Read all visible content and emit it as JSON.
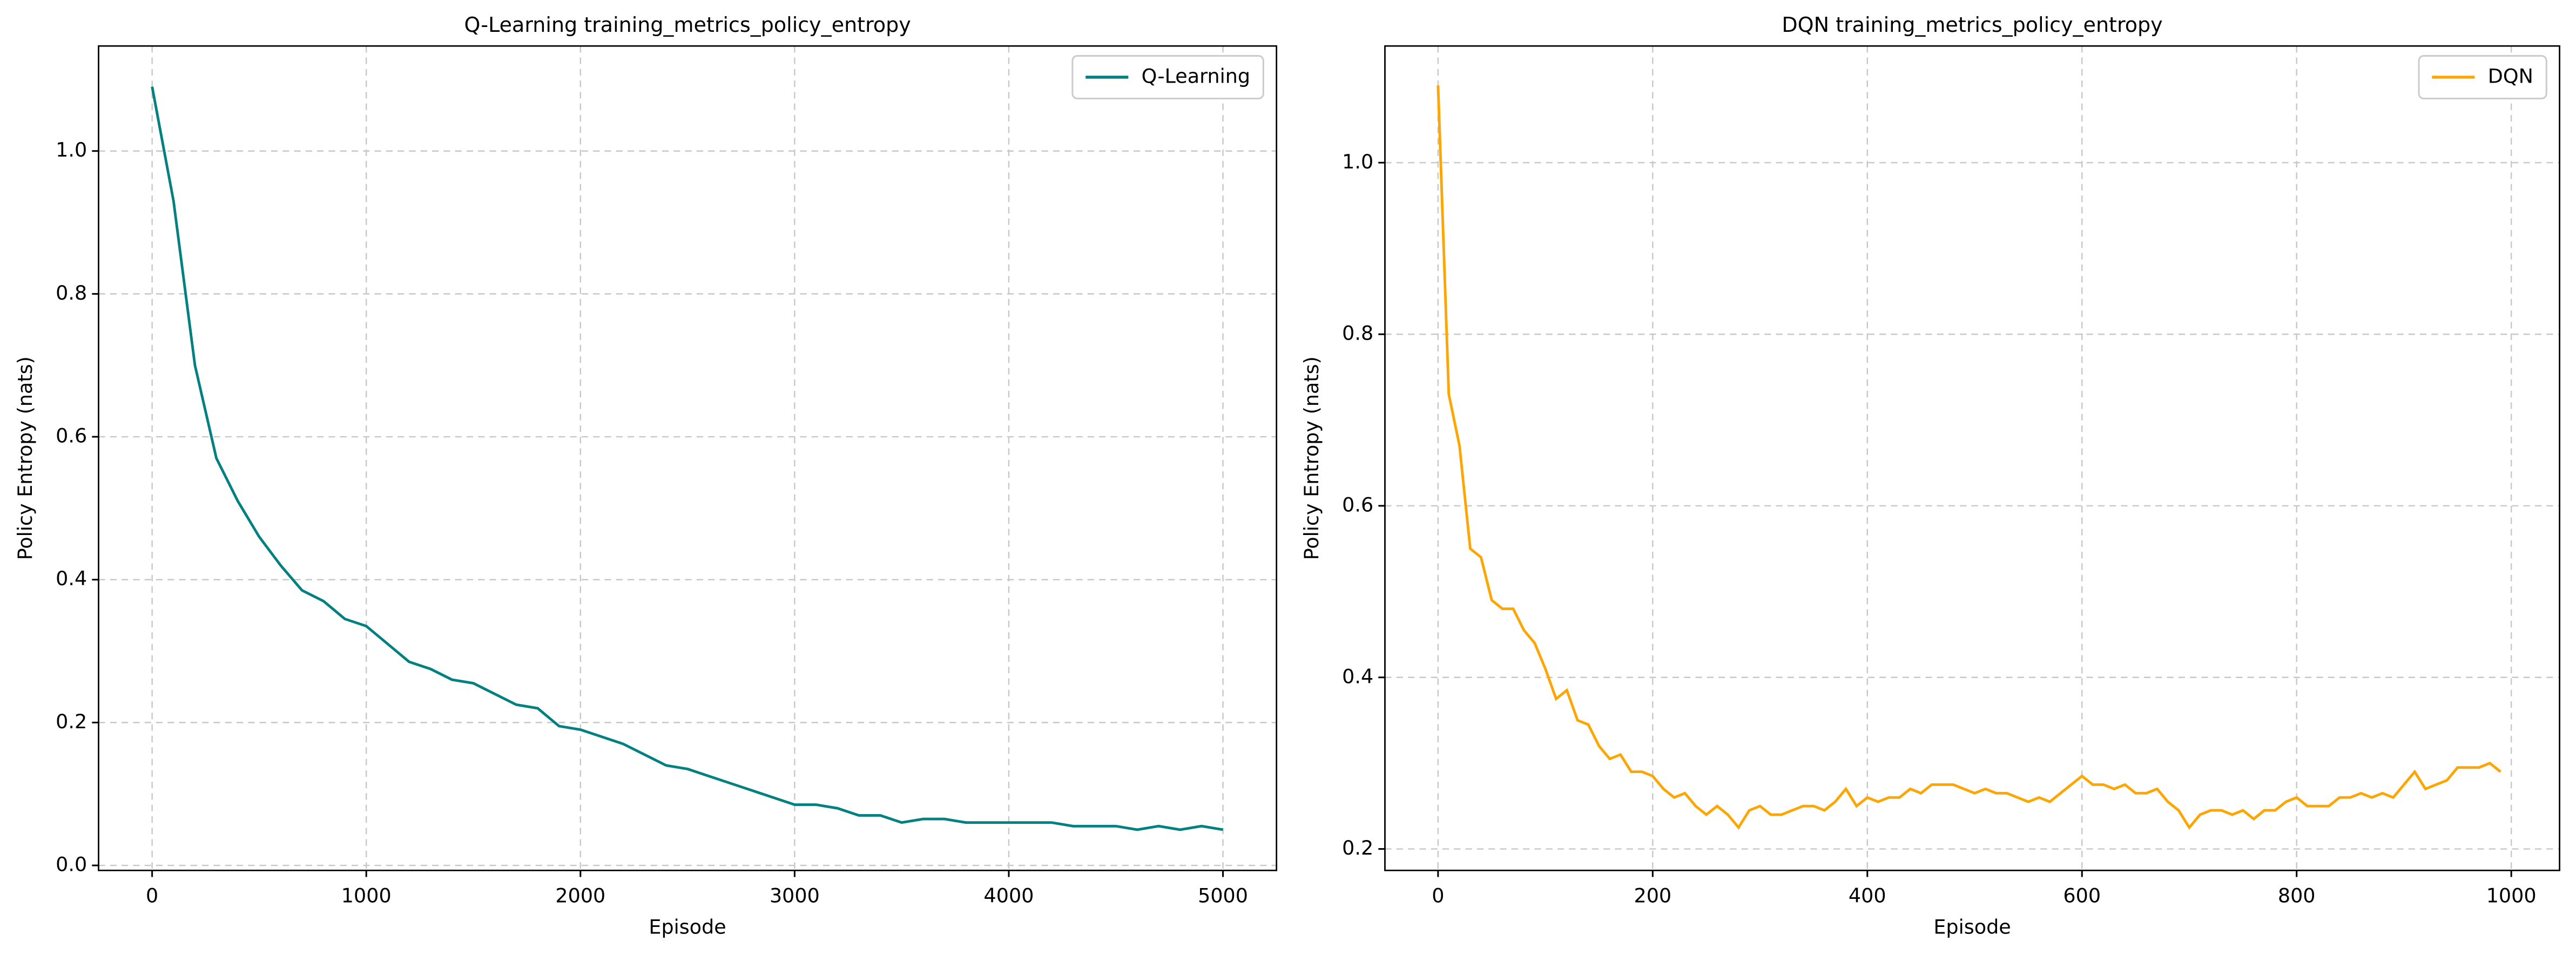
{
  "chart_data": [
    {
      "type": "line",
      "title": "Q-Learning training_metrics_policy_entropy",
      "xlabel": "Episode",
      "ylabel": "Policy Entropy (nats)",
      "x": [
        0,
        100,
        200,
        300,
        400,
        500,
        600,
        700,
        800,
        900,
        1000,
        1100,
        1200,
        1300,
        1400,
        1500,
        1600,
        1700,
        1800,
        1900,
        2000,
        2100,
        2200,
        2300,
        2400,
        2500,
        2600,
        2700,
        2800,
        2900,
        3000,
        3100,
        3200,
        3300,
        3400,
        3500,
        3600,
        3700,
        3800,
        3900,
        4000,
        4100,
        4200,
        4300,
        4400,
        4500,
        4600,
        4700,
        4800,
        4900,
        5000
      ],
      "series": [
        {
          "name": "Q-Learning",
          "color": "#008080",
          "values": [
            1.09,
            0.93,
            0.7,
            0.57,
            0.51,
            0.46,
            0.42,
            0.385,
            0.37,
            0.345,
            0.335,
            0.31,
            0.285,
            0.275,
            0.26,
            0.255,
            0.24,
            0.225,
            0.22,
            0.195,
            0.19,
            0.18,
            0.17,
            0.155,
            0.14,
            0.135,
            0.125,
            0.115,
            0.105,
            0.095,
            0.085,
            0.085,
            0.08,
            0.07,
            0.07,
            0.06,
            0.065,
            0.065,
            0.06,
            0.06,
            0.06,
            0.06,
            0.06,
            0.055,
            0.055,
            0.055,
            0.05,
            0.055,
            0.05,
            0.055,
            0.05
          ]
        }
      ],
      "xlim": [
        -250,
        5250
      ],
      "ylim": [
        -0.007,
        1.147
      ],
      "xticks": [
        0,
        1000,
        2000,
        3000,
        4000,
        5000
      ],
      "yticks": [
        {
          "value": 0,
          "label": "0.0"
        },
        0.2,
        0.4,
        0.6,
        0.8,
        {
          "value": 1,
          "label": "1.0"
        }
      ],
      "grid": true,
      "legend": "upper right"
    },
    {
      "type": "line",
      "title": "DQN training_metrics_policy_entropy",
      "xlabel": "Episode",
      "ylabel": "Policy Entropy (nats)",
      "x": [
        0,
        10,
        20,
        30,
        40,
        50,
        60,
        70,
        80,
        90,
        100,
        110,
        120,
        130,
        140,
        150,
        160,
        170,
        180,
        190,
        200,
        210,
        220,
        230,
        240,
        250,
        260,
        270,
        280,
        290,
        300,
        310,
        320,
        330,
        340,
        350,
        360,
        370,
        380,
        390,
        400,
        410,
        420,
        430,
        440,
        450,
        460,
        470,
        480,
        490,
        500,
        510,
        520,
        530,
        540,
        550,
        560,
        570,
        580,
        590,
        600,
        610,
        620,
        630,
        640,
        650,
        660,
        670,
        680,
        690,
        700,
        710,
        720,
        730,
        740,
        750,
        760,
        770,
        780,
        790,
        800,
        810,
        820,
        830,
        840,
        850,
        860,
        870,
        880,
        890,
        900,
        910,
        920,
        930,
        940,
        950,
        960,
        970,
        980,
        990
      ],
      "series": [
        {
          "name": "DQN",
          "color": "#ffa500",
          "values": [
            1.09,
            0.73,
            0.67,
            0.55,
            0.54,
            0.49,
            0.48,
            0.48,
            0.455,
            0.44,
            0.41,
            0.375,
            0.385,
            0.35,
            0.345,
            0.32,
            0.305,
            0.31,
            0.29,
            0.29,
            0.285,
            0.27,
            0.26,
            0.265,
            0.25,
            0.24,
            0.25,
            0.24,
            0.225,
            0.245,
            0.25,
            0.24,
            0.24,
            0.245,
            0.25,
            0.25,
            0.245,
            0.255,
            0.27,
            0.25,
            0.26,
            0.255,
            0.26,
            0.26,
            0.27,
            0.265,
            0.275,
            0.275,
            0.275,
            0.27,
            0.265,
            0.27,
            0.265,
            0.265,
            0.26,
            0.255,
            0.26,
            0.255,
            0.265,
            0.275,
            0.285,
            0.275,
            0.275,
            0.27,
            0.275,
            0.265,
            0.265,
            0.27,
            0.255,
            0.245,
            0.225,
            0.24,
            0.245,
            0.245,
            0.24,
            0.245,
            0.235,
            0.245,
            0.245,
            0.255,
            0.26,
            0.25,
            0.25,
            0.25,
            0.26,
            0.26,
            0.265,
            0.26,
            0.265,
            0.26,
            0.275,
            0.29,
            0.27,
            0.275,
            0.28,
            0.295,
            0.295,
            0.295,
            0.3,
            0.29
          ]
        }
      ],
      "xlim": [
        -49.5,
        1045
      ],
      "ylim": [
        0.175,
        1.136
      ],
      "xticks": [
        0,
        200,
        400,
        600,
        800,
        1000
      ],
      "yticks": [
        0.2,
        0.4,
        0.6,
        0.8,
        {
          "value": 1,
          "label": "1.0"
        }
      ],
      "grid": true,
      "legend": "upper right"
    }
  ]
}
